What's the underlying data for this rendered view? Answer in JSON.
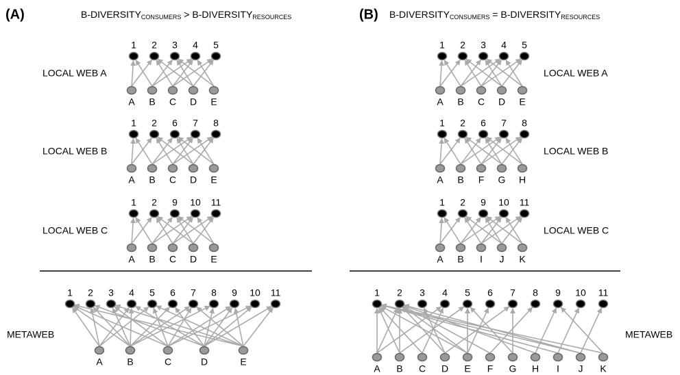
{
  "panels": [
    {
      "label": "(A)",
      "heading": [
        "B-DIVERSITY",
        "CONSUMERS",
        " > B-DIVERSITY",
        "RESOURCES"
      ],
      "webs": [
        {
          "name": "LOCAL  WEB A",
          "consumers": [
            "1",
            "2",
            "3",
            "4",
            "5"
          ],
          "resources": [
            "A",
            "B",
            "C",
            "D",
            "E"
          ]
        },
        {
          "name": "LOCAL  WEB B",
          "consumers": [
            "1",
            "2",
            "6",
            "7",
            "8"
          ],
          "resources": [
            "A",
            "B",
            "C",
            "D",
            "E"
          ]
        },
        {
          "name": "LOCAL  WEB C",
          "consumers": [
            "1",
            "2",
            "9",
            "10",
            "11"
          ],
          "resources": [
            "A",
            "B",
            "C",
            "D",
            "E"
          ]
        }
      ],
      "metaweb": {
        "name": "METAWEB",
        "consumers": [
          "1",
          "2",
          "3",
          "4",
          "5",
          "6",
          "7",
          "8",
          "9",
          "10",
          "11"
        ],
        "resources": [
          "A",
          "B",
          "C",
          "D",
          "E"
        ]
      }
    },
    {
      "label": "(B)",
      "heading": [
        "B-DIVERSITY",
        "CONSUMERS",
        " = B-DIVERSITY",
        "RESOURCES"
      ],
      "webs": [
        {
          "name": "LOCAL  WEB A",
          "consumers": [
            "1",
            "2",
            "3",
            "4",
            "5"
          ],
          "resources": [
            "A",
            "B",
            "C",
            "D",
            "E"
          ]
        },
        {
          "name": "LOCAL  WEB B",
          "consumers": [
            "1",
            "2",
            "6",
            "7",
            "8"
          ],
          "resources": [
            "A",
            "B",
            "F",
            "G",
            "H"
          ]
        },
        {
          "name": "LOCAL  WEB C",
          "consumers": [
            "1",
            "2",
            "9",
            "10",
            "11"
          ],
          "resources": [
            "A",
            "B",
            "I",
            "J",
            "K"
          ]
        }
      ],
      "metaweb": {
        "name": "METAWEB",
        "consumers": [
          "1",
          "2",
          "3",
          "4",
          "5",
          "6",
          "7",
          "8",
          "9",
          "10",
          "11"
        ],
        "resources": [
          "A",
          "B",
          "C",
          "D",
          "E",
          "F",
          "G",
          "H",
          "I",
          "J",
          "K"
        ]
      }
    }
  ]
}
